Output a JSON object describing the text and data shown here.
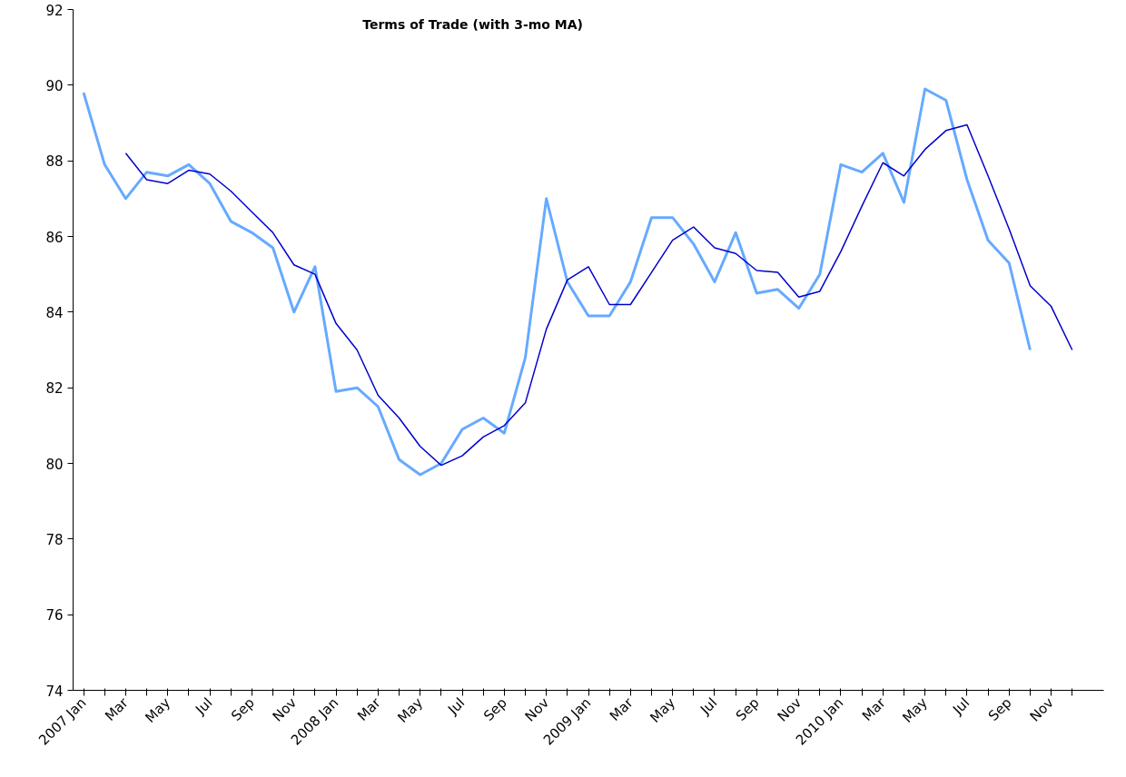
{
  "chart_data": {
    "type": "line",
    "title": "Terms of Trade (with 3-mo MA)",
    "categories": [
      "2007 Jan",
      null,
      "Mar",
      null,
      "May",
      null,
      "Jul",
      null,
      "Sep",
      null,
      "Nov",
      null,
      "2008 Jan",
      null,
      "Mar",
      null,
      "May",
      null,
      "Jul",
      null,
      "Sep",
      null,
      "Nov",
      null,
      "2009 Jan",
      null,
      "Mar",
      null,
      "May",
      null,
      "Jul",
      null,
      "Sep",
      null,
      "Nov",
      null,
      "2010 Jan",
      null,
      "Mar",
      null,
      "May",
      null,
      "Jul",
      null,
      "Sep",
      null,
      "Nov",
      null
    ],
    "series": [
      {
        "color": "#66aaff",
        "values": [
          89.8,
          87.9,
          87.0,
          87.7,
          87.6,
          87.9,
          87.4,
          86.4,
          86.1,
          85.7,
          84.0,
          85.2,
          81.9,
          82.0,
          81.5,
          80.1,
          79.7,
          80.0,
          80.9,
          81.2,
          80.8,
          82.8,
          87.0,
          84.8,
          83.9,
          83.9,
          84.8,
          86.5,
          86.5,
          85.8,
          84.8,
          86.1,
          84.5,
          84.6,
          84.1,
          85.0,
          87.9,
          87.7,
          88.2,
          86.9,
          89.9,
          89.6,
          87.5,
          85.9,
          85.3,
          83.0,
          null,
          null
        ]
      },
      {
        "color": "#0000cc",
        "values": [
          null,
          null,
          88.2,
          87.5,
          87.4,
          87.75,
          87.65,
          87.2,
          86.65,
          86.1,
          85.25,
          85.0,
          83.7,
          83.0,
          81.8,
          81.2,
          80.45,
          79.95,
          80.2,
          80.7,
          81.0,
          81.6,
          83.55,
          84.85,
          85.2,
          84.2,
          84.2,
          85.05,
          85.9,
          86.25,
          85.7,
          85.55,
          85.1,
          85.05,
          84.4,
          84.55,
          85.6,
          86.8,
          87.95,
          87.6,
          88.3,
          88.8,
          88.95,
          87.6,
          86.2,
          84.7,
          84.15,
          83.0
        ]
      }
    ],
    "ylim": [
      74,
      92
    ],
    "yticks": [
      74,
      76,
      78,
      80,
      82,
      84,
      86,
      88,
      90,
      92
    ],
    "grid": false
  }
}
